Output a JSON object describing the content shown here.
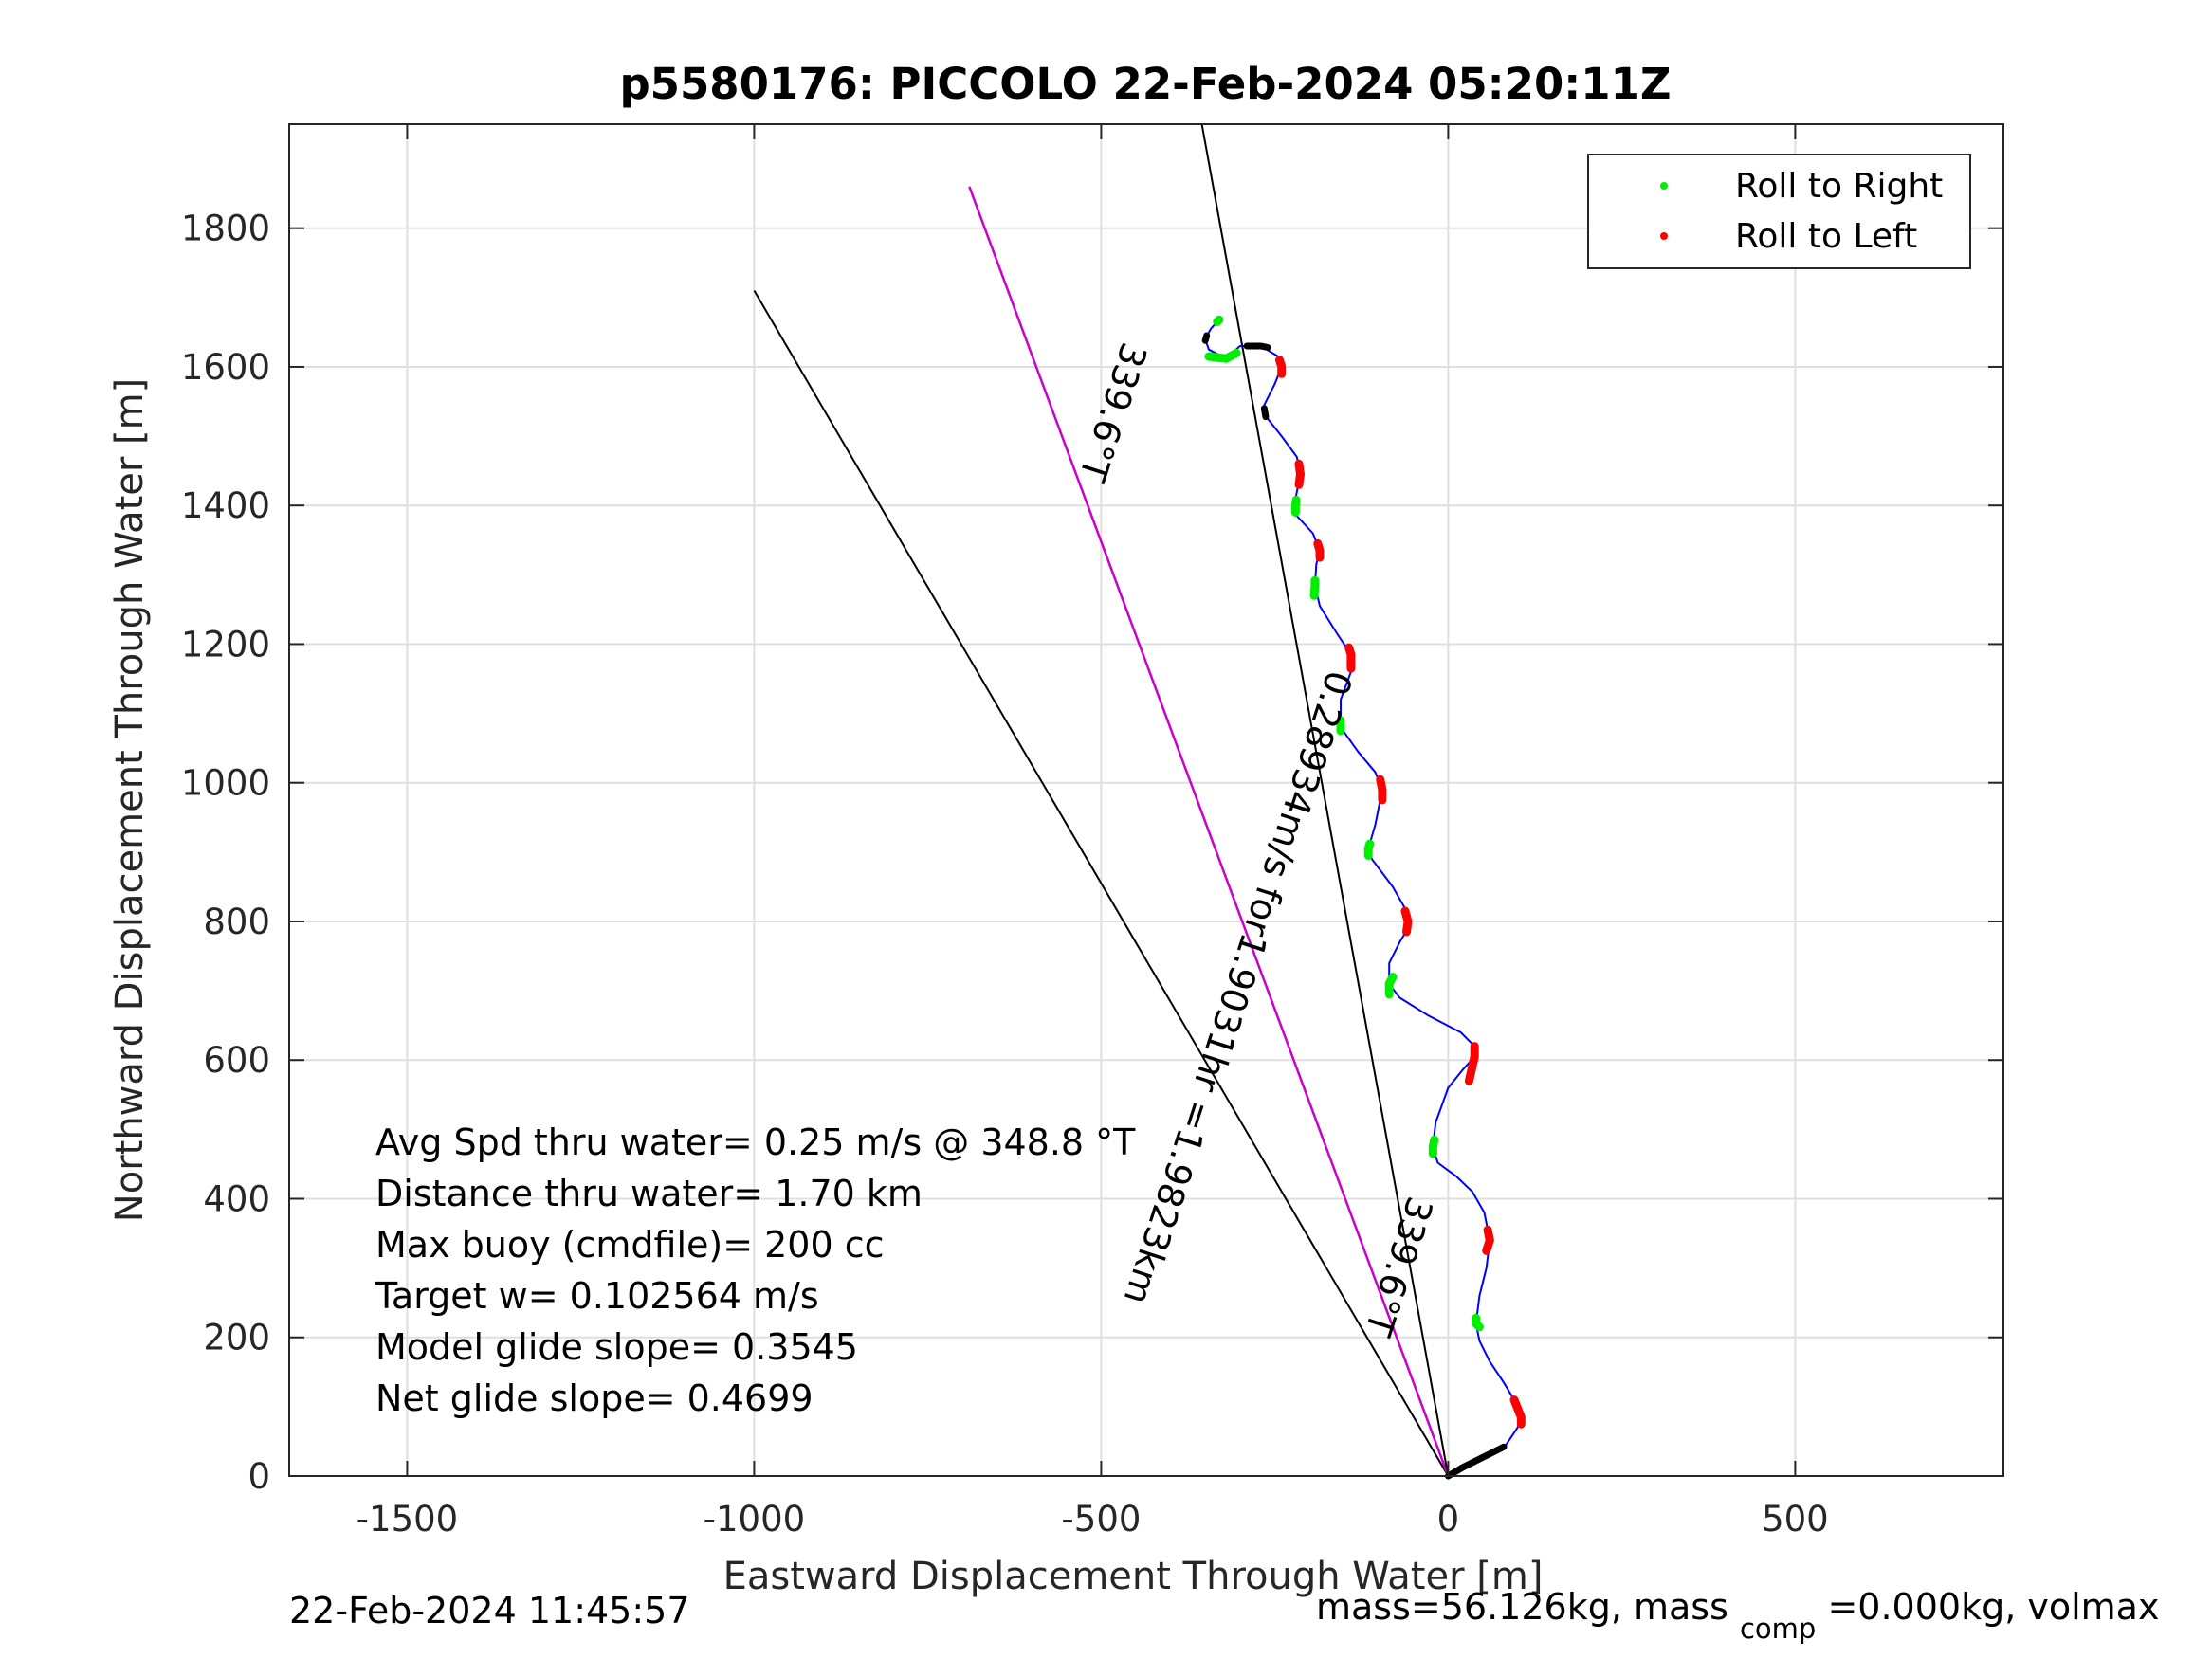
{
  "chart_data": {
    "type": "line",
    "title": "p5580176: PICCOLO 22-Feb-2024 05:20:11Z",
    "xlabel": "Eastward Displacement Through Water [m]",
    "ylabel": "Northward Displacement Through Water [m]",
    "xlim": [
      -1670,
      800
    ],
    "ylim": [
      0,
      1950
    ],
    "xticks": [
      -1500,
      -1000,
      -500,
      0,
      500
    ],
    "xtick_labels": [
      "-1500",
      "-1000",
      "-500",
      "0",
      "500"
    ],
    "yticks": [
      0,
      200,
      400,
      600,
      800,
      1000,
      1200,
      1400,
      1600,
      1800
    ],
    "ytick_labels": [
      "0",
      "200",
      "400",
      "600",
      "800",
      "1000",
      "1200",
      "1400",
      "1600",
      "1800"
    ],
    "grid": true,
    "legend_position": "top-right",
    "legend": [
      {
        "label": "Roll to Right",
        "color": "#00ee00"
      },
      {
        "label": "Roll to Left",
        "color": "#ff0000"
      }
    ],
    "track": [
      [
        0,
        0
      ],
      [
        40,
        20
      ],
      [
        80,
        40
      ],
      [
        100,
        70
      ],
      [
        105,
        85
      ],
      [
        95,
        110
      ],
      [
        80,
        135
      ],
      [
        60,
        165
      ],
      [
        45,
        195
      ],
      [
        40,
        220
      ],
      [
        45,
        260
      ],
      [
        55,
        300
      ],
      [
        60,
        340
      ],
      [
        52,
        380
      ],
      [
        35,
        410
      ],
      [
        12,
        432
      ],
      [
        -15,
        452
      ],
      [
        -22,
        475
      ],
      [
        -18,
        510
      ],
      [
        0,
        560
      ],
      [
        20,
        585
      ],
      [
        38,
        605
      ],
      [
        38,
        620
      ],
      [
        18,
        640
      ],
      [
        -30,
        665
      ],
      [
        -70,
        690
      ],
      [
        -85,
        710
      ],
      [
        -85,
        740
      ],
      [
        -70,
        770
      ],
      [
        -58,
        790
      ],
      [
        -60,
        815
      ],
      [
        -80,
        850
      ],
      [
        -110,
        890
      ],
      [
        -115,
        905
      ],
      [
        -105,
        940
      ],
      [
        -95,
        990
      ],
      [
        -105,
        1015
      ],
      [
        -130,
        1045
      ],
      [
        -155,
        1080
      ],
      [
        -155,
        1120
      ],
      [
        -140,
        1160
      ],
      [
        -140,
        1185
      ],
      [
        -160,
        1215
      ],
      [
        -185,
        1255
      ],
      [
        -192,
        1285
      ],
      [
        -190,
        1315
      ],
      [
        -185,
        1335
      ],
      [
        -195,
        1360
      ],
      [
        -218,
        1385
      ],
      [
        -220,
        1410
      ],
      [
        -213,
        1445
      ],
      [
        -218,
        1470
      ],
      [
        -240,
        1500
      ],
      [
        -260,
        1525
      ],
      [
        -265,
        1545
      ],
      [
        -250,
        1575
      ],
      [
        -240,
        1600
      ],
      [
        -245,
        1615
      ],
      [
        -270,
        1630
      ],
      [
        -300,
        1630
      ],
      [
        -320,
        1612
      ],
      [
        -345,
        1625
      ],
      [
        -350,
        1640
      ],
      [
        -342,
        1655
      ],
      [
        -330,
        1668
      ]
    ],
    "roll_left": [
      [
        [
          105,
          75
        ],
        [
          105,
          85
        ],
        [
          95,
          110
        ]
      ],
      [
        [
          55,
          325
        ],
        [
          60,
          340
        ],
        [
          57,
          355
        ]
      ],
      [
        [
          30,
          570
        ],
        [
          38,
          605
        ],
        [
          38,
          620
        ]
      ],
      [
        [
          -60,
          785
        ],
        [
          -58,
          800
        ],
        [
          -62,
          815
        ]
      ],
      [
        [
          -95,
          975
        ],
        [
          -95,
          990
        ],
        [
          -98,
          1005
        ]
      ],
      [
        [
          -140,
          1165
        ],
        [
          -140,
          1185
        ],
        [
          -143,
          1195
        ]
      ],
      [
        [
          -185,
          1325
        ],
        [
          -185,
          1335
        ],
        [
          -188,
          1345
        ]
      ],
      [
        [
          -215,
          1430
        ],
        [
          -213,
          1445
        ],
        [
          -215,
          1460
        ]
      ],
      [
        [
          -240,
          1590
        ],
        [
          -240,
          1600
        ],
        [
          -243,
          1610
        ]
      ]
    ],
    "roll_right": [
      [
        [
          45,
          215
        ],
        [
          40,
          220
        ],
        [
          40,
          228
        ]
      ],
      [
        [
          -22,
          465
        ],
        [
          -22,
          475
        ],
        [
          -20,
          485
        ]
      ],
      [
        [
          -85,
          695
        ],
        [
          -85,
          710
        ],
        [
          -80,
          720
        ]
      ],
      [
        [
          -115,
          895
        ],
        [
          -115,
          905
        ],
        [
          -113,
          912
        ]
      ],
      [
        [
          -155,
          1075
        ],
        [
          -155,
          1080
        ],
        [
          -155,
          1090
        ]
      ],
      [
        [
          -193,
          1270
        ],
        [
          -192,
          1285
        ],
        [
          -192,
          1292
        ]
      ],
      [
        [
          -220,
          1390
        ],
        [
          -220,
          1400
        ],
        [
          -219,
          1408
        ]
      ],
      [
        [
          -345,
          1615
        ],
        [
          -320,
          1612
        ],
        [
          -305,
          1620
        ]
      ],
      [
        [
          -333,
          1665
        ],
        [
          -330,
          1668
        ]
      ]
    ],
    "black_segments": [
      [
        [
          0,
          0
        ],
        [
          20,
          12
        ],
        [
          40,
          22
        ],
        [
          60,
          32
        ],
        [
          80,
          42
        ]
      ],
      [
        [
          -290,
          1630
        ],
        [
          -270,
          1630
        ],
        [
          -260,
          1628
        ]
      ],
      [
        [
          -265,
          1540
        ],
        [
          -263,
          1528
        ]
      ],
      [
        [
          -348,
          1645
        ],
        [
          -350,
          1638
        ]
      ]
    ],
    "reference_lines": [
      {
        "from": [
          0,
          0
        ],
        "to": [
          -1000,
          1710
        ],
        "color": "#000000"
      },
      {
        "from": [
          0,
          0
        ],
        "to": [
          -690,
          1860
        ],
        "color": "#cc00cc"
      },
      {
        "from": [
          0,
          0
        ],
        "to": [
          -355,
          1950
        ],
        "color": "#000000"
      }
    ],
    "rotated_annotations": [
      {
        "text": "339.6°T",
        "at": [
          -500,
          1540
        ],
        "angle": 108
      },
      {
        "text": "0.28934m/s for1.9031hr =1.9823km",
        "at": [
          -320,
          710
        ],
        "angle": 108
      },
      {
        "text": "339.6°T",
        "at": [
          -88,
          308
        ],
        "angle": 108
      }
    ],
    "annotations": [
      "Avg Spd thru water=  0.25 m/s @ 348.8 °T",
      "Distance thru water=  1.70 km",
      "Max buoy (cmdfile)= 200 cc",
      "Target w= 0.102564 m/s",
      "Model glide slope= 0.3545",
      "Net glide slope= 0.4699"
    ]
  },
  "footer": {
    "timestamp": "22-Feb-2024 11:45:57",
    "mass_a": "mass=56.126kg, mass",
    "mass_sub": "comp",
    "mass_b": "=0.000kg, volmax"
  },
  "colors": {
    "track": "#0000ff",
    "roll_right": "#00ee00",
    "roll_left": "#ff0000",
    "magenta_line": "#cc00cc",
    "black": "#000000"
  }
}
